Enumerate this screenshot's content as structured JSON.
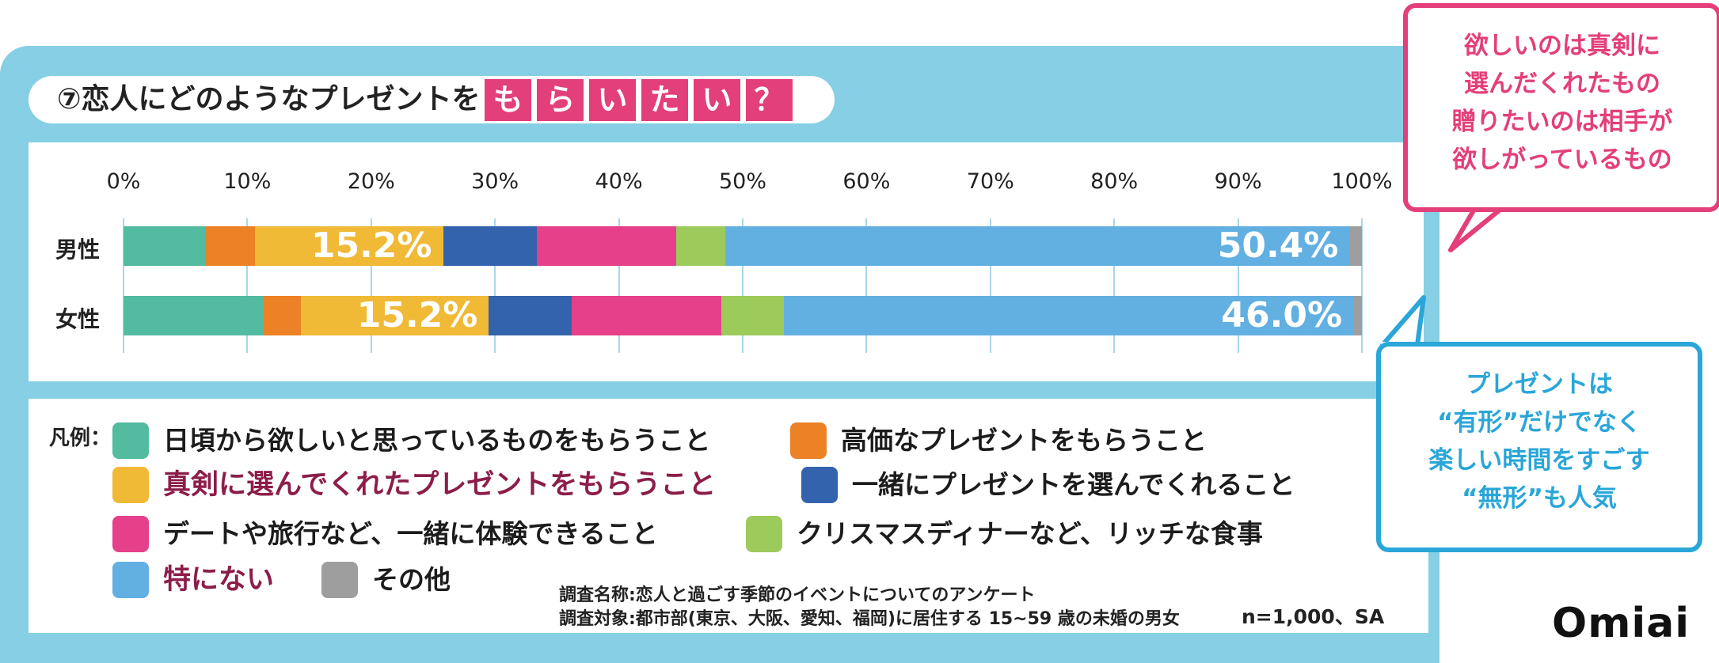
{
  "title": {
    "prefix": "⑦恋人にどのようなプレゼントを",
    "boxed_chars": [
      "も",
      "ら",
      "い",
      "た",
      "い",
      "？"
    ],
    "box_color": "#e33f7a"
  },
  "chart_data": {
    "type": "bar",
    "orientation": "horizontal",
    "stacked": true,
    "categories": [
      "男性",
      "女性"
    ],
    "xlim": [
      0,
      100
    ],
    "x_ticks": [
      "0%",
      "10%",
      "20%",
      "30%",
      "40%",
      "50%",
      "60%",
      "70%",
      "80%",
      "90%",
      "100%"
    ],
    "grid": true,
    "series": [
      {
        "name": "日頃から欲しいと思っているものをもらうこと",
        "color": "#52bba0",
        "values": [
          6.6,
          11.3
        ]
      },
      {
        "name": "高価なプレゼントをもらうこと",
        "color": "#ec8125",
        "values": [
          4.0,
          3.0
        ]
      },
      {
        "name": "真剣に選んでくれたプレゼントをもらうこと",
        "color": "#f0b936",
        "values": [
          15.2,
          15.2
        ]
      },
      {
        "name": "一緒にプレゼントを選んでくれること",
        "color": "#3463ad",
        "values": [
          7.6,
          6.7
        ]
      },
      {
        "name": "デートや旅行など、一緒に体験できること",
        "color": "#e6408a",
        "values": [
          11.2,
          12.1
        ]
      },
      {
        "name": "クリスマスディナーなど、リッチな食事",
        "color": "#9ccb5b",
        "values": [
          4.0,
          5.0
        ]
      },
      {
        "name": "特にない",
        "color": "#62afe2",
        "values": [
          50.4,
          46.0
        ]
      },
      {
        "name": "その他",
        "color": "#9e9e9e",
        "values": [
          1.0,
          0.7
        ]
      }
    ],
    "data_labels": [
      {
        "category": "男性",
        "series": "真剣に選んでくれたプレゼントをもらうこと",
        "text": "15.2%"
      },
      {
        "category": "男性",
        "series": "特にない",
        "text": "50.4%"
      },
      {
        "category": "女性",
        "series": "真剣に選んでくれたプレゼントをもらうこと",
        "text": "15.2%"
      },
      {
        "category": "女性",
        "series": "特にない",
        "text": "46.0%"
      }
    ]
  },
  "legend": {
    "heading": "凡例：",
    "highlighted": [
      "真剣に選んでくれたプレゼントをもらうこと",
      "特にない"
    ]
  },
  "survey": {
    "name_line": "調査名称:恋人と過ごす季節のイベントについてのアンケート",
    "target_line": "調査対象:都市部(東京、大阪、愛知、福岡)に居住する 15~59 歳の未婚の男女",
    "sample": "n=1,000、SA"
  },
  "callout_pink": {
    "lines": [
      "欲しいのは真剣に",
      "選んだくれたもの",
      "贈りたいのは相手が",
      "欲しがっているもの"
    ]
  },
  "callout_blue": {
    "lines": [
      "プレゼントは",
      "“有形”だけでなく",
      "楽しい時間をすごす",
      "“無形”も人気"
    ]
  },
  "brand": {
    "logo": "Omiai"
  }
}
